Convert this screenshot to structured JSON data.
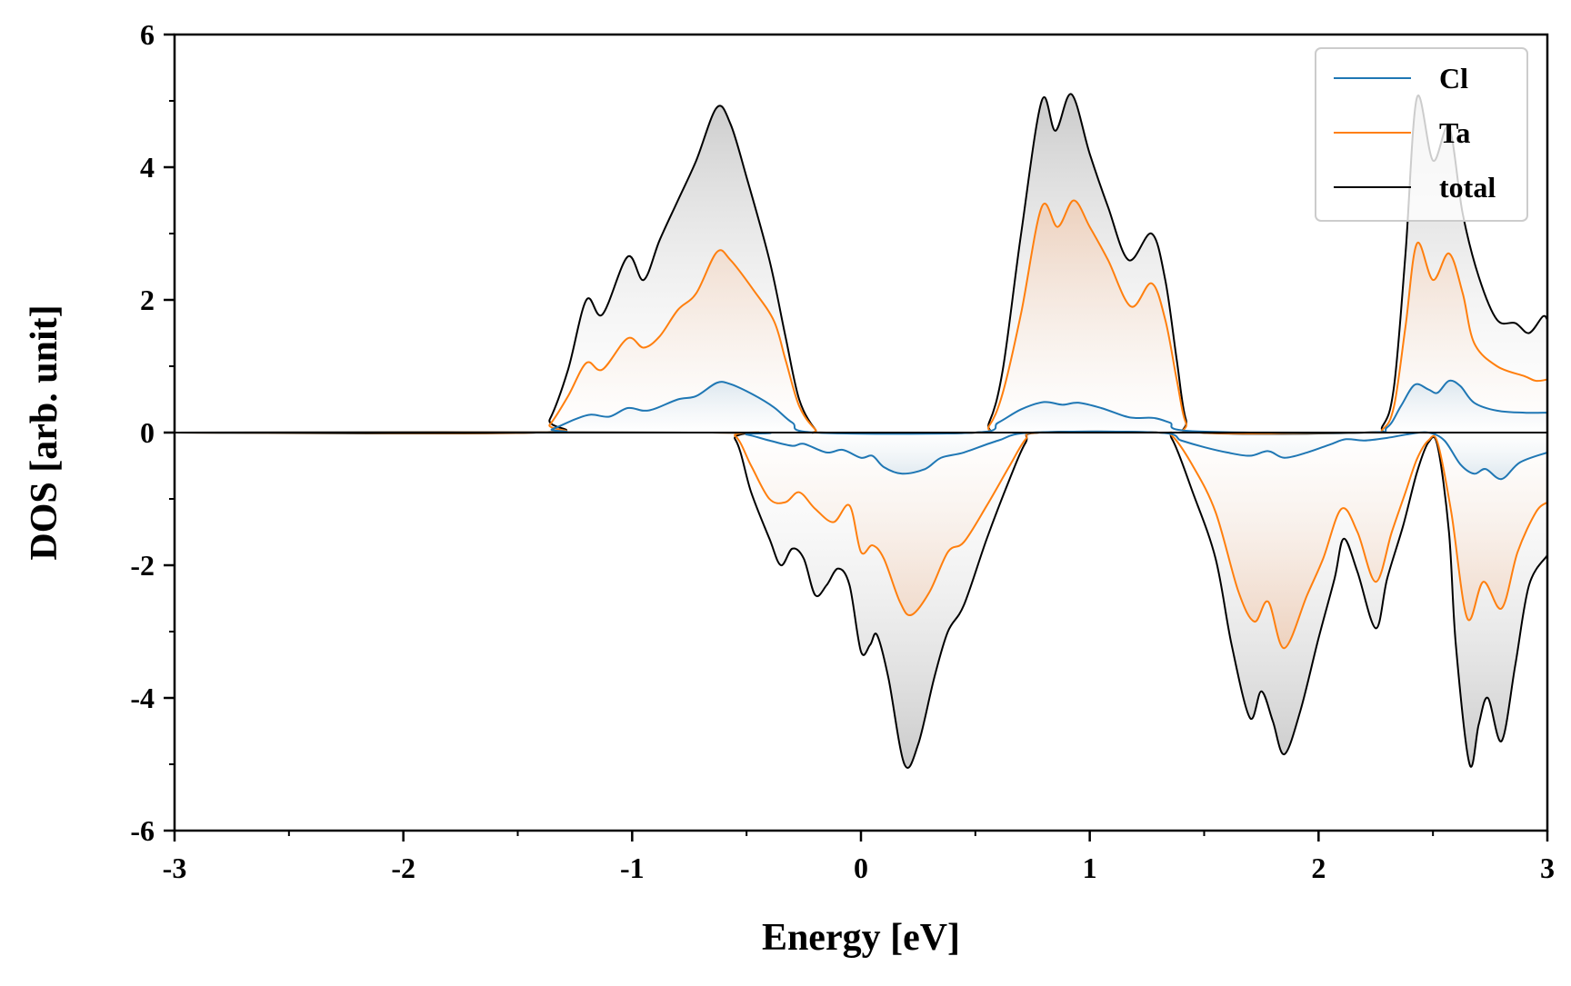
{
  "chart_data": {
    "type": "line",
    "title": "",
    "xlabel": "Energy [eV]",
    "ylabel": "DOS [arb. unit]",
    "xlim": [
      -3,
      3
    ],
    "ylim": [
      -6,
      6
    ],
    "xticks": [
      -3,
      -2,
      -1,
      0,
      1,
      2,
      3
    ],
    "yticks": [
      -6,
      -4,
      -2,
      0,
      2,
      4,
      6
    ],
    "xtick_labels": [
      "-3",
      "-2",
      "-1",
      "0",
      "1",
      "2",
      "3"
    ],
    "ytick_labels": [
      "-6",
      "-4",
      "-2",
      "0",
      "2",
      "4",
      "6"
    ],
    "grid": false,
    "legend_position": "top-right",
    "series": [
      {
        "name": "Cl",
        "color": "#1f77b4",
        "spin_up": [
          [
            -3,
            0
          ],
          [
            -1.42,
            0
          ],
          [
            -1.35,
            0.05
          ],
          [
            -1.25,
            0.2
          ],
          [
            -1.18,
            0.27
          ],
          [
            -1.1,
            0.24
          ],
          [
            -1.02,
            0.37
          ],
          [
            -0.95,
            0.33
          ],
          [
            -0.9,
            0.36
          ],
          [
            -0.8,
            0.5
          ],
          [
            -0.72,
            0.55
          ],
          [
            -0.63,
            0.75
          ],
          [
            -0.57,
            0.73
          ],
          [
            -0.47,
            0.57
          ],
          [
            -0.38,
            0.38
          ],
          [
            -0.3,
            0.15
          ],
          [
            -0.2,
            0
          ],
          [
            0.5,
            0
          ],
          [
            0.6,
            0.15
          ],
          [
            0.7,
            0.35
          ],
          [
            0.8,
            0.46
          ],
          [
            0.88,
            0.42
          ],
          [
            0.95,
            0.45
          ],
          [
            1.05,
            0.37
          ],
          [
            1.15,
            0.25
          ],
          [
            1.2,
            0.22
          ],
          [
            1.28,
            0.22
          ],
          [
            1.35,
            0.15
          ],
          [
            1.45,
            0.02
          ],
          [
            2.2,
            0
          ],
          [
            2.3,
            0.08
          ],
          [
            2.36,
            0.4
          ],
          [
            2.42,
            0.72
          ],
          [
            2.48,
            0.65
          ],
          [
            2.52,
            0.6
          ],
          [
            2.57,
            0.78
          ],
          [
            2.62,
            0.7
          ],
          [
            2.68,
            0.45
          ],
          [
            2.78,
            0.33
          ],
          [
            2.9,
            0.3
          ],
          [
            3,
            0.3
          ]
        ],
        "spin_down": [
          [
            -3,
            0
          ],
          [
            -0.6,
            0
          ],
          [
            -0.5,
            -0.03
          ],
          [
            -0.4,
            -0.12
          ],
          [
            -0.3,
            -0.2
          ],
          [
            -0.25,
            -0.17
          ],
          [
            -0.15,
            -0.3
          ],
          [
            -0.08,
            -0.26
          ],
          [
            0,
            -0.38
          ],
          [
            0.05,
            -0.35
          ],
          [
            0.1,
            -0.52
          ],
          [
            0.18,
            -0.62
          ],
          [
            0.28,
            -0.55
          ],
          [
            0.35,
            -0.38
          ],
          [
            0.45,
            -0.3
          ],
          [
            0.6,
            -0.12
          ],
          [
            0.75,
            0
          ],
          [
            1.3,
            0
          ],
          [
            1.4,
            -0.12
          ],
          [
            1.5,
            -0.22
          ],
          [
            1.6,
            -0.3
          ],
          [
            1.7,
            -0.35
          ],
          [
            1.78,
            -0.28
          ],
          [
            1.85,
            -0.38
          ],
          [
            1.95,
            -0.3
          ],
          [
            2.05,
            -0.18
          ],
          [
            2.12,
            -0.1
          ],
          [
            2.2,
            -0.12
          ],
          [
            2.3,
            -0.08
          ],
          [
            2.4,
            -0.02
          ],
          [
            2.48,
            0
          ],
          [
            2.55,
            -0.12
          ],
          [
            2.62,
            -0.48
          ],
          [
            2.68,
            -0.62
          ],
          [
            2.73,
            -0.55
          ],
          [
            2.8,
            -0.7
          ],
          [
            2.88,
            -0.45
          ],
          [
            3,
            -0.3
          ]
        ]
      },
      {
        "name": "Ta",
        "color": "#ff7f0e",
        "spin_up": [
          [
            -3,
            0
          ],
          [
            -1.42,
            0
          ],
          [
            -1.36,
            0.12
          ],
          [
            -1.28,
            0.55
          ],
          [
            -1.2,
            1.05
          ],
          [
            -1.13,
            0.95
          ],
          [
            -1.02,
            1.42
          ],
          [
            -0.95,
            1.28
          ],
          [
            -0.88,
            1.45
          ],
          [
            -0.8,
            1.85
          ],
          [
            -0.72,
            2.1
          ],
          [
            -0.63,
            2.72
          ],
          [
            -0.57,
            2.6
          ],
          [
            -0.47,
            2.15
          ],
          [
            -0.38,
            1.68
          ],
          [
            -0.33,
            1.1
          ],
          [
            -0.27,
            0.4
          ],
          [
            -0.2,
            0.05
          ],
          [
            -0.15,
            0
          ],
          [
            0.5,
            0
          ],
          [
            0.56,
            0.1
          ],
          [
            0.62,
            0.6
          ],
          [
            0.7,
            1.8
          ],
          [
            0.79,
            3.4
          ],
          [
            0.86,
            3.1
          ],
          [
            0.93,
            3.5
          ],
          [
            1,
            3.1
          ],
          [
            1.08,
            2.6
          ],
          [
            1.18,
            1.9
          ],
          [
            1.27,
            2.25
          ],
          [
            1.33,
            1.7
          ],
          [
            1.38,
            0.8
          ],
          [
            1.42,
            0.15
          ],
          [
            1.48,
            0
          ],
          [
            2.2,
            0
          ],
          [
            2.28,
            0.05
          ],
          [
            2.33,
            0.4
          ],
          [
            2.38,
            1.6
          ],
          [
            2.43,
            2.85
          ],
          [
            2.5,
            2.3
          ],
          [
            2.57,
            2.7
          ],
          [
            2.63,
            2.1
          ],
          [
            2.68,
            1.35
          ],
          [
            2.78,
            1
          ],
          [
            2.9,
            0.85
          ],
          [
            2.95,
            0.78
          ],
          [
            3,
            0.8
          ]
        ],
        "spin_down": [
          [
            -3,
            0
          ],
          [
            -0.65,
            0
          ],
          [
            -0.55,
            -0.05
          ],
          [
            -0.48,
            -0.5
          ],
          [
            -0.4,
            -1
          ],
          [
            -0.33,
            -1.05
          ],
          [
            -0.27,
            -0.9
          ],
          [
            -0.2,
            -1.15
          ],
          [
            -0.12,
            -1.35
          ],
          [
            -0.05,
            -1.1
          ],
          [
            0,
            -1.8
          ],
          [
            0.05,
            -1.7
          ],
          [
            0.1,
            -1.9
          ],
          [
            0.17,
            -2.55
          ],
          [
            0.22,
            -2.75
          ],
          [
            0.3,
            -2.4
          ],
          [
            0.38,
            -1.8
          ],
          [
            0.45,
            -1.65
          ],
          [
            0.55,
            -1.1
          ],
          [
            0.65,
            -0.5
          ],
          [
            0.72,
            -0.1
          ],
          [
            0.78,
            0
          ],
          [
            1.3,
            0
          ],
          [
            1.36,
            -0.05
          ],
          [
            1.45,
            -0.5
          ],
          [
            1.55,
            -1.2
          ],
          [
            1.65,
            -2.4
          ],
          [
            1.72,
            -2.85
          ],
          [
            1.78,
            -2.55
          ],
          [
            1.85,
            -3.25
          ],
          [
            1.95,
            -2.45
          ],
          [
            2.02,
            -1.9
          ],
          [
            2.1,
            -1.15
          ],
          [
            2.17,
            -1.5
          ],
          [
            2.25,
            -2.25
          ],
          [
            2.32,
            -1.5
          ],
          [
            2.38,
            -0.9
          ],
          [
            2.43,
            -0.4
          ],
          [
            2.48,
            -0.12
          ],
          [
            2.52,
            -0.15
          ],
          [
            2.58,
            -1.2
          ],
          [
            2.65,
            -2.8
          ],
          [
            2.72,
            -2.25
          ],
          [
            2.8,
            -2.65
          ],
          [
            2.87,
            -1.8
          ],
          [
            2.95,
            -1.2
          ],
          [
            3,
            -1.05
          ]
        ]
      },
      {
        "name": "total",
        "color": "#000000",
        "spin_up": [
          [
            -3,
            0
          ],
          [
            -1.42,
            0
          ],
          [
            -1.36,
            0.2
          ],
          [
            -1.28,
            0.95
          ],
          [
            -1.2,
            2
          ],
          [
            -1.13,
            1.78
          ],
          [
            -1.02,
            2.65
          ],
          [
            -0.95,
            2.3
          ],
          [
            -0.88,
            2.9
          ],
          [
            -0.8,
            3.5
          ],
          [
            -0.72,
            4.1
          ],
          [
            -0.63,
            4.9
          ],
          [
            -0.57,
            4.65
          ],
          [
            -0.5,
            3.85
          ],
          [
            -0.4,
            2.6
          ],
          [
            -0.33,
            1.45
          ],
          [
            -0.27,
            0.5
          ],
          [
            -0.2,
            0.05
          ],
          [
            -0.15,
            0
          ],
          [
            0.5,
            0
          ],
          [
            0.56,
            0.15
          ],
          [
            0.62,
            0.95
          ],
          [
            0.7,
            3
          ],
          [
            0.79,
            5
          ],
          [
            0.85,
            4.55
          ],
          [
            0.92,
            5.1
          ],
          [
            1,
            4.2
          ],
          [
            1.08,
            3.4
          ],
          [
            1.17,
            2.6
          ],
          [
            1.27,
            3
          ],
          [
            1.33,
            2.3
          ],
          [
            1.38,
            1.1
          ],
          [
            1.42,
            0.2
          ],
          [
            1.48,
            0
          ],
          [
            2.2,
            0
          ],
          [
            2.28,
            0.1
          ],
          [
            2.33,
            0.7
          ],
          [
            2.38,
            2.7
          ],
          [
            2.43,
            5.05
          ],
          [
            2.5,
            4.1
          ],
          [
            2.57,
            4.6
          ],
          [
            2.63,
            3.3
          ],
          [
            2.7,
            2.35
          ],
          [
            2.78,
            1.7
          ],
          [
            2.86,
            1.65
          ],
          [
            2.92,
            1.5
          ],
          [
            2.98,
            1.75
          ],
          [
            3,
            1.7
          ]
        ],
        "spin_down": [
          [
            -3,
            0
          ],
          [
            -0.65,
            0
          ],
          [
            -0.55,
            -0.1
          ],
          [
            -0.48,
            -0.9
          ],
          [
            -0.4,
            -1.6
          ],
          [
            -0.35,
            -2
          ],
          [
            -0.3,
            -1.75
          ],
          [
            -0.25,
            -1.9
          ],
          [
            -0.2,
            -2.45
          ],
          [
            -0.15,
            -2.3
          ],
          [
            -0.1,
            -2.05
          ],
          [
            -0.05,
            -2.3
          ],
          [
            0,
            -3.3
          ],
          [
            0.04,
            -3.2
          ],
          [
            0.07,
            -3.05
          ],
          [
            0.12,
            -3.7
          ],
          [
            0.19,
            -5
          ],
          [
            0.25,
            -4.7
          ],
          [
            0.32,
            -3.7
          ],
          [
            0.38,
            -3
          ],
          [
            0.45,
            -2.6
          ],
          [
            0.55,
            -1.6
          ],
          [
            0.65,
            -0.7
          ],
          [
            0.72,
            -0.15
          ],
          [
            0.78,
            0
          ],
          [
            1.3,
            0
          ],
          [
            1.36,
            -0.1
          ],
          [
            1.45,
            -0.9
          ],
          [
            1.55,
            -1.9
          ],
          [
            1.62,
            -3.2
          ],
          [
            1.7,
            -4.3
          ],
          [
            1.75,
            -3.9
          ],
          [
            1.8,
            -4.35
          ],
          [
            1.85,
            -4.85
          ],
          [
            1.92,
            -4.2
          ],
          [
            2,
            -3.1
          ],
          [
            2.07,
            -2.2
          ],
          [
            2.11,
            -1.6
          ],
          [
            2.17,
            -2.1
          ],
          [
            2.25,
            -2.95
          ],
          [
            2.3,
            -2.2
          ],
          [
            2.37,
            -1.4
          ],
          [
            2.43,
            -0.6
          ],
          [
            2.48,
            -0.15
          ],
          [
            2.52,
            -0.2
          ],
          [
            2.57,
            -1.5
          ],
          [
            2.6,
            -3.2
          ],
          [
            2.66,
            -5
          ],
          [
            2.7,
            -4.4
          ],
          [
            2.74,
            -4
          ],
          [
            2.8,
            -4.65
          ],
          [
            2.86,
            -3.5
          ],
          [
            2.92,
            -2.3
          ],
          [
            3,
            -1.85
          ]
        ]
      }
    ]
  }
}
